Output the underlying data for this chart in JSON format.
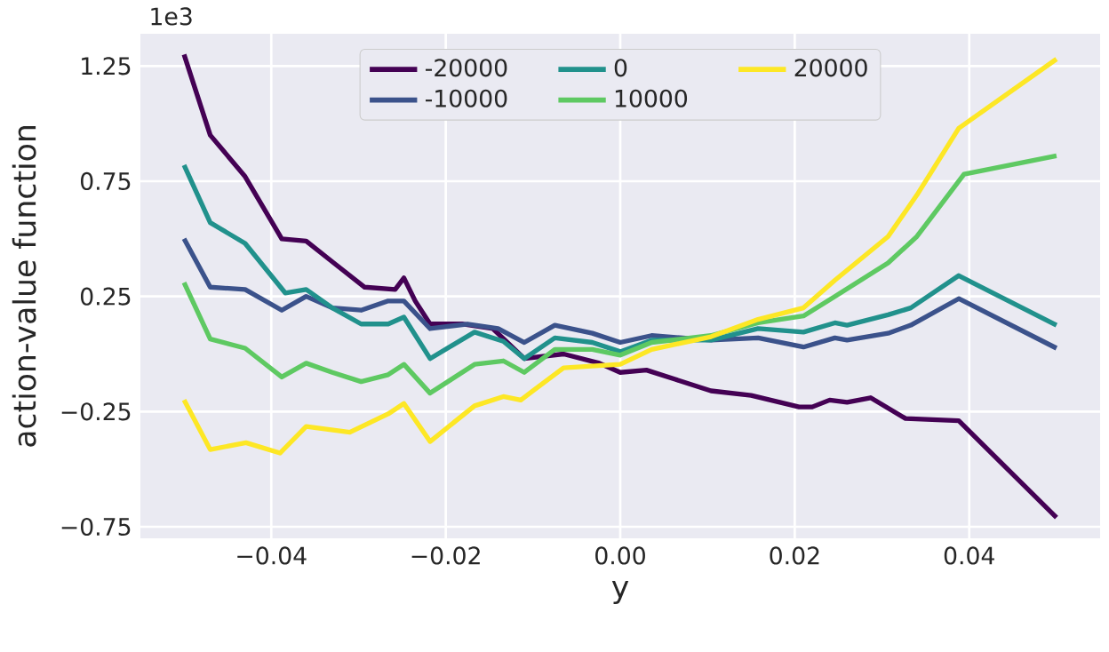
{
  "chart_data": {
    "type": "line",
    "xlabel": "y",
    "ylabel": "action-value function",
    "annotations": [
      "1e3"
    ],
    "xlim": [
      -0.055,
      0.055
    ],
    "ylim": [
      -0.8,
      1.39
    ],
    "xticks": [
      {
        "value": -0.04,
        "label": "−0.04"
      },
      {
        "value": -0.02,
        "label": "−0.02"
      },
      {
        "value": 0,
        "label": "0.00"
      },
      {
        "value": 0.02,
        "label": "0.02"
      },
      {
        "value": 0.04,
        "label": "0.04"
      }
    ],
    "yticks": [
      {
        "value": -0.75,
        "label": "−0.75"
      },
      {
        "value": -0.25,
        "label": "−0.25"
      },
      {
        "value": 0.25,
        "label": "0.25"
      },
      {
        "value": 0.75,
        "label": "0.75"
      },
      {
        "value": 1.25,
        "label": "1.25"
      }
    ],
    "grid": true,
    "legend": "top",
    "series": [
      {
        "name": "-20000",
        "color": "#440154",
        "x": [
          -0.05,
          -0.047,
          -0.043,
          -0.0388,
          -0.036,
          -0.033,
          -0.0293,
          -0.0258,
          -0.0248,
          -0.0235,
          -0.0218,
          -0.018,
          -0.0146,
          -0.011,
          -0.0065,
          -0.0024,
          0.0,
          0.003,
          0.0063,
          0.0104,
          0.015,
          0.0205,
          0.022,
          0.024,
          0.026,
          0.0287,
          0.0327,
          0.0388,
          0.05
        ],
        "values": [
          1.3,
          0.95,
          0.77,
          0.5,
          0.49,
          0.4,
          0.29,
          0.28,
          0.33,
          0.23,
          0.13,
          0.13,
          0.11,
          -0.02,
          0.0,
          -0.04,
          -0.08,
          -0.07,
          -0.11,
          -0.16,
          -0.18,
          -0.23,
          -0.23,
          -0.2,
          -0.21,
          -0.19,
          -0.28,
          -0.29,
          -0.71
        ]
      },
      {
        "name": "-10000",
        "color": "#3b528b",
        "x": [
          -0.05,
          -0.047,
          -0.043,
          -0.0388,
          -0.036,
          -0.033,
          -0.0297,
          -0.0266,
          -0.0248,
          -0.0218,
          -0.0175,
          -0.014,
          -0.011,
          -0.0075,
          -0.0032,
          0.0,
          0.0036,
          0.0104,
          0.0158,
          0.021,
          0.0246,
          0.026,
          0.0307,
          0.0333,
          0.0388,
          0.05
        ],
        "values": [
          0.5,
          0.29,
          0.28,
          0.19,
          0.25,
          0.2,
          0.19,
          0.23,
          0.23,
          0.11,
          0.13,
          0.11,
          0.05,
          0.125,
          0.09,
          0.05,
          0.08,
          0.06,
          0.07,
          0.03,
          0.07,
          0.06,
          0.09,
          0.125,
          0.24,
          0.025
        ]
      },
      {
        "name": "0",
        "color": "#21918c",
        "x": [
          -0.05,
          -0.047,
          -0.043,
          -0.0384,
          -0.036,
          -0.033,
          -0.0297,
          -0.0266,
          -0.0248,
          -0.0218,
          -0.0167,
          -0.0134,
          -0.011,
          -0.0075,
          -0.0032,
          0.0,
          0.0036,
          0.0104,
          0.0158,
          0.021,
          0.0246,
          0.026,
          0.0307,
          0.0333,
          0.0388,
          0.05
        ],
        "values": [
          0.82,
          0.57,
          0.48,
          0.265,
          0.28,
          0.2,
          0.13,
          0.13,
          0.16,
          -0.02,
          0.095,
          0.055,
          -0.02,
          0.07,
          0.05,
          0.01,
          0.06,
          0.06,
          0.11,
          0.095,
          0.135,
          0.125,
          0.17,
          0.2,
          0.34,
          0.125
        ]
      },
      {
        "name": "10000",
        "color": "#5ec962",
        "x": [
          -0.05,
          -0.047,
          -0.043,
          -0.0388,
          -0.036,
          -0.033,
          -0.0297,
          -0.0266,
          -0.0248,
          -0.0218,
          -0.0167,
          -0.0134,
          -0.011,
          -0.0075,
          -0.0032,
          0.0,
          0.0036,
          0.0104,
          0.0158,
          0.021,
          0.0246,
          0.0307,
          0.034,
          0.0394,
          0.05
        ],
        "values": [
          0.31,
          0.065,
          0.025,
          -0.1,
          -0.04,
          -0.08,
          -0.12,
          -0.09,
          -0.045,
          -0.17,
          -0.045,
          -0.03,
          -0.08,
          0.02,
          0.02,
          -0.005,
          0.05,
          0.08,
          0.135,
          0.165,
          0.25,
          0.395,
          0.51,
          0.78,
          0.86
        ]
      },
      {
        "name": "20000",
        "color": "#fde725",
        "x": [
          -0.05,
          -0.047,
          -0.0429,
          -0.039,
          -0.036,
          -0.031,
          -0.0266,
          -0.0248,
          -0.0218,
          -0.0167,
          -0.0134,
          -0.0114,
          -0.01,
          -0.0065,
          0.0,
          0.0036,
          0.0104,
          0.0158,
          0.021,
          0.0246,
          0.0307,
          0.034,
          0.0388,
          0.05
        ],
        "values": [
          -0.2,
          -0.415,
          -0.385,
          -0.43,
          -0.315,
          -0.34,
          -0.26,
          -0.215,
          -0.38,
          -0.225,
          -0.185,
          -0.2,
          -0.16,
          -0.06,
          -0.045,
          0.02,
          0.075,
          0.15,
          0.2,
          0.32,
          0.51,
          0.69,
          0.98,
          1.28
        ]
      }
    ]
  }
}
